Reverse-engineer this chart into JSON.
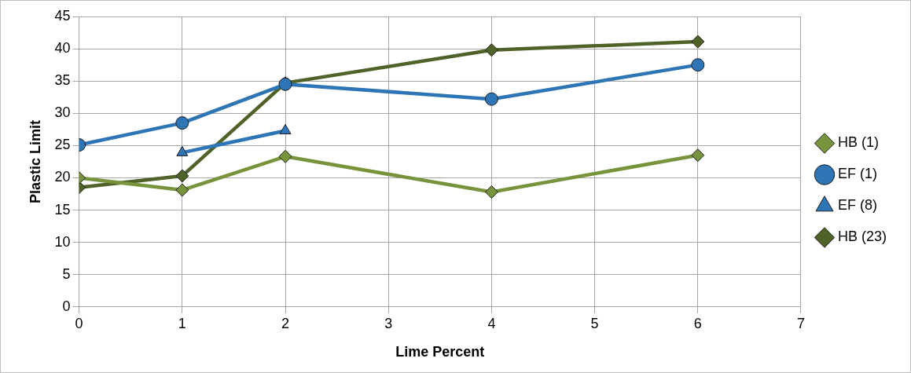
{
  "chart_data": {
    "type": "line",
    "xlabel": "Lime Percent",
    "ylabel": "Plastic Limit",
    "xlim": [
      0,
      7
    ],
    "xticks": [
      0,
      1,
      2,
      3,
      4,
      5,
      6,
      7
    ],
    "ylim": [
      0,
      45
    ],
    "yticks": [
      0,
      5,
      10,
      15,
      20,
      25,
      30,
      35,
      40,
      45
    ],
    "grid": true,
    "legend": "right",
    "series": [
      {
        "name": "HB (1)",
        "color": "#77933c",
        "marker": "diamond",
        "x": [
          0,
          1,
          2,
          4,
          6
        ],
        "values": [
          20,
          18.1,
          23.3,
          17.8,
          23.5
        ]
      },
      {
        "name": "EF (1)",
        "color": "#2e75b6",
        "marker": "circle",
        "x": [
          0,
          1,
          2,
          4,
          6
        ],
        "values": [
          25.1,
          28.5,
          34.5,
          32.2,
          37.5
        ]
      },
      {
        "name": "EF (8)",
        "color": "#2e75b6",
        "marker": "triangle",
        "x": [
          1,
          2
        ],
        "values": [
          23.9,
          27.3
        ]
      },
      {
        "name": "HB (23)",
        "color": "#4f6228",
        "marker": "diamond",
        "x": [
          0,
          1,
          2,
          4,
          6
        ],
        "values": [
          18.5,
          20.3,
          34.7,
          39.8,
          41.1
        ]
      }
    ]
  }
}
